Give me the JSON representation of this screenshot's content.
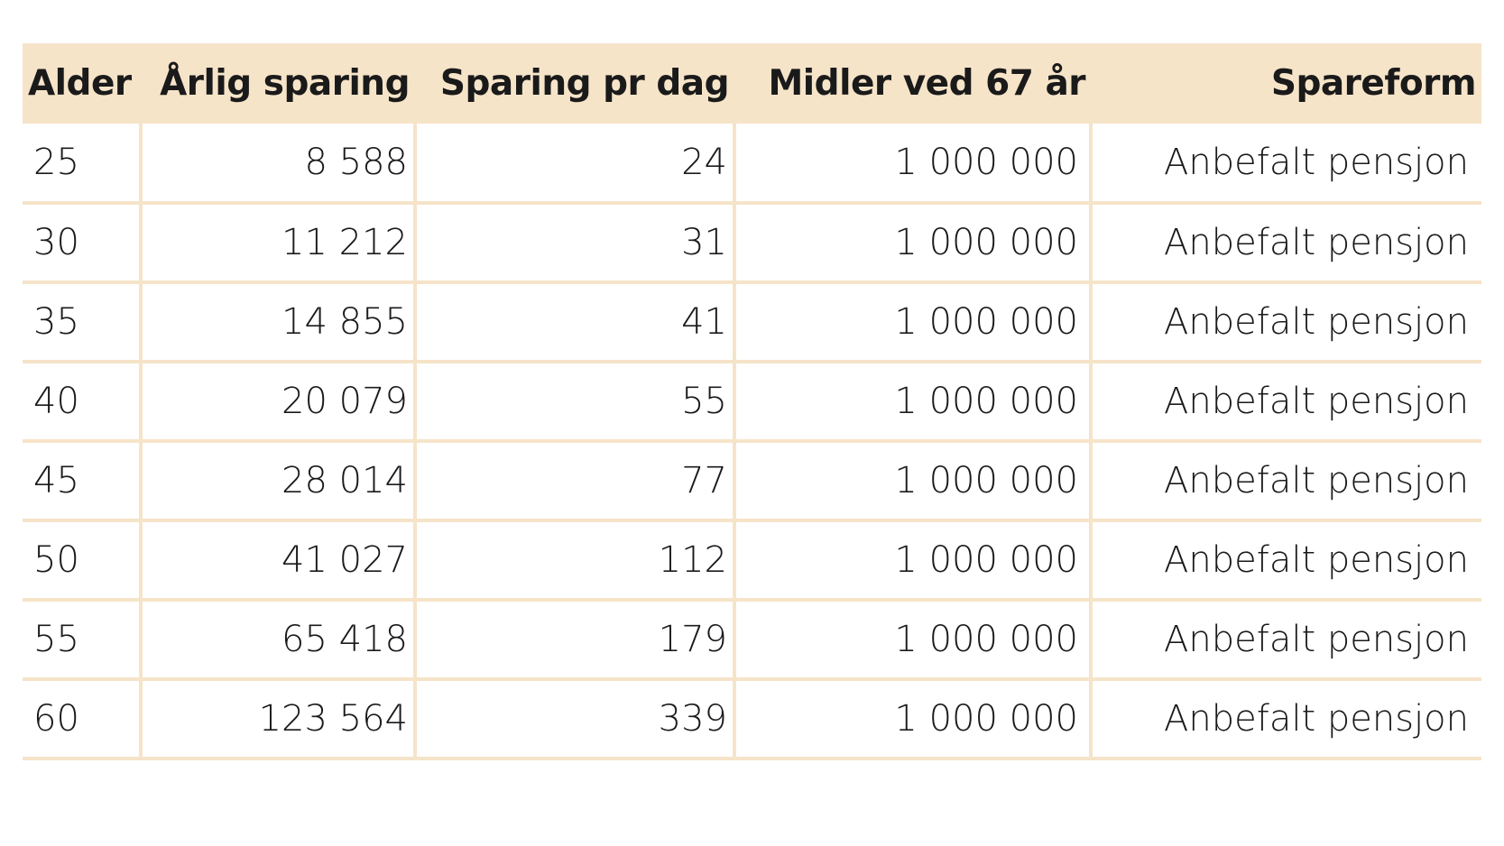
{
  "table": {
    "columns": [
      "Alder",
      "Årlig sparing",
      "Sparing pr dag",
      "Midler ved 67 år",
      "Spareform"
    ],
    "rows": [
      [
        "25",
        "8 588",
        "24",
        "1 000 000",
        "Anbefalt pensjon"
      ],
      [
        "30",
        "11 212",
        "31",
        "1 000 000",
        "Anbefalt pensjon"
      ],
      [
        "35",
        "14 855",
        "41",
        "1 000 000",
        "Anbefalt pensjon"
      ],
      [
        "40",
        "20 079",
        "55",
        "1 000 000",
        "Anbefalt pensjon"
      ],
      [
        "45",
        "28 014",
        "77",
        "1 000 000",
        "Anbefalt pensjon"
      ],
      [
        "50",
        "41 027",
        "112",
        "1 000 000",
        "Anbefalt pensjon"
      ],
      [
        "55",
        "65 418",
        "179",
        "1 000 000",
        "Anbefalt pensjon"
      ],
      [
        "60",
        "123 564",
        "339",
        "1 000 000",
        "Anbefalt pensjon"
      ]
    ]
  },
  "colors": {
    "header_background": "#f6e4c9",
    "grid_lines": "#f6e4c9",
    "text": "#1a1a1a"
  }
}
